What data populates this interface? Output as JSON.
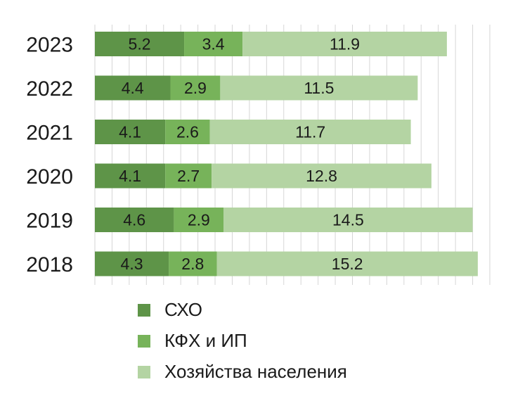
{
  "chart_data": {
    "type": "bar",
    "orientation": "horizontal",
    "stacked": true,
    "categories": [
      "2023",
      "2022",
      "2021",
      "2020",
      "2019",
      "2018"
    ],
    "series": [
      {
        "name": "СХО",
        "values": [
          5.2,
          4.4,
          4.1,
          4.1,
          4.6,
          4.3
        ],
        "color": "#5e9448"
      },
      {
        "name": "КФХ и ИП",
        "values": [
          3.4,
          2.9,
          2.6,
          2.7,
          2.9,
          2.8
        ],
        "color": "#77b35a"
      },
      {
        "name": "Хозяйства населения",
        "values": [
          11.9,
          11.5,
          11.7,
          12.8,
          14.5,
          15.2
        ],
        "color": "#b4d4a3"
      }
    ],
    "value_labels": [
      [
        "5.2",
        "4.4",
        "4.1",
        "4.1",
        "4.6",
        "4.3"
      ],
      [
        "3.4",
        "2.9",
        "2.6",
        "2.7",
        "2.9",
        "2.8"
      ],
      [
        "11.9",
        "11.5",
        "11.7",
        "12.8",
        "14.5",
        "15.2"
      ]
    ],
    "xlim": [
      0,
      23
    ],
    "grid": true,
    "legend": "bottom-center"
  }
}
